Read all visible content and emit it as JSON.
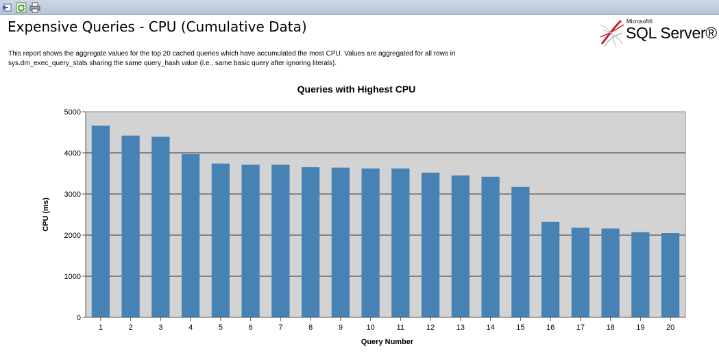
{
  "toolbar": {
    "buttons": [
      {
        "name": "back-button",
        "icon": "back-arrow-icon"
      },
      {
        "name": "refresh-button",
        "icon": "refresh-icon"
      },
      {
        "name": "print-button",
        "icon": "printer-icon"
      }
    ]
  },
  "report": {
    "title": "Expensive Queries - CPU (Cumulative Data)",
    "description": "This report shows the aggregate values for the top 20 cached queries which have accumulated the most CPU. Values are aggregated for all rows in sys.dm_exec_query_stats sharing the same query_hash value (i.e., same basic query after ignoring literals)."
  },
  "logo": {
    "brand_small": "Microsoft®",
    "product": "SQL Server®"
  },
  "colors": {
    "bar": "#4682b4",
    "plot_background": "#d3d3d3",
    "toolbar": "#c4cfdf"
  },
  "chart_data": {
    "type": "bar",
    "title": "Queries with Highest CPU",
    "xlabel": "Query Number",
    "ylabel": "CPU (ms)",
    "ylim": [
      0,
      5000
    ],
    "yticks": [
      0,
      1000,
      2000,
      3000,
      4000,
      5000
    ],
    "grid": true,
    "categories": [
      "1",
      "2",
      "3",
      "4",
      "5",
      "6",
      "7",
      "8",
      "9",
      "10",
      "11",
      "12",
      "13",
      "14",
      "15",
      "16",
      "17",
      "18",
      "19",
      "20"
    ],
    "values": [
      4660,
      4420,
      4390,
      3970,
      3740,
      3710,
      3710,
      3650,
      3640,
      3620,
      3620,
      3520,
      3450,
      3420,
      3170,
      2320,
      2180,
      2160,
      2070,
      2050
    ]
  }
}
